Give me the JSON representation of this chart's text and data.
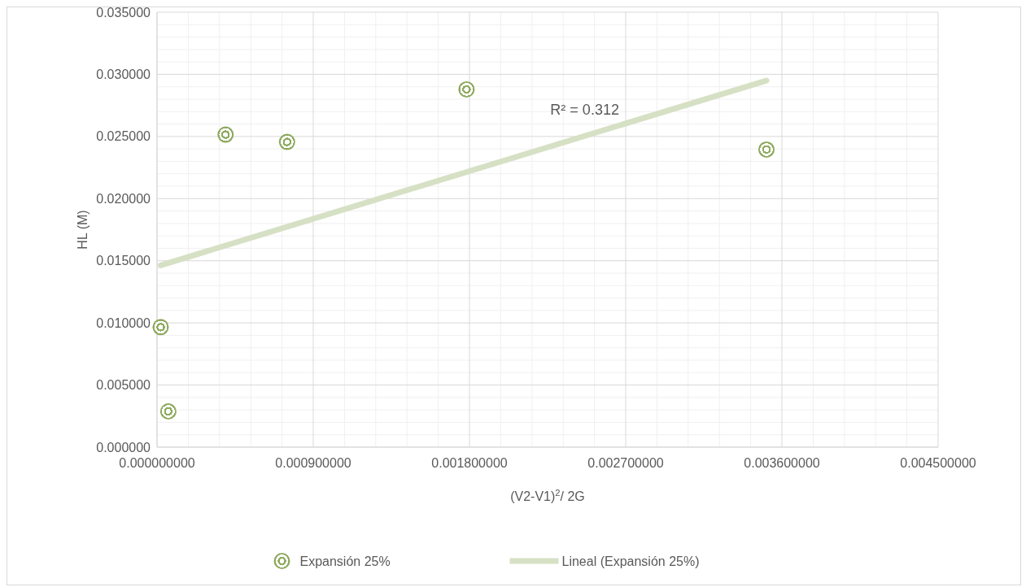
{
  "chart_data": {
    "type": "scatter",
    "xlabel": "(V2-V1)$^{2}$/ 2G",
    "ylabel": "HL (M)",
    "series": [
      {
        "name": "Expansión 25%",
        "color": "#8faa5e",
        "x": [
          2.1e-05,
          6.5e-05,
          0.000395,
          0.000749,
          0.001783,
          0.003511
        ],
        "values": [
          0.00966,
          0.00288,
          0.02515,
          0.02456,
          0.02879,
          0.02395
        ]
      },
      {
        "name": "Lineal (Expansión 25%)",
        "type": "line",
        "marker": "none",
        "color": "#d6e0c4",
        "x": [
          2.1e-05,
          0.003511
        ],
        "values": [
          0.01463,
          0.0295
        ]
      }
    ],
    "xlim": [
      0,
      0.0045
    ],
    "ylim": [
      0,
      0.035
    ],
    "xticks": [
      {
        "value": 0,
        "label": "0.000000000"
      },
      {
        "value": 0.0009,
        "label": "0.000900000"
      },
      {
        "value": 0.0018,
        "label": "0.001800000"
      },
      {
        "value": 0.0027,
        "label": "0.002700000"
      },
      {
        "value": 0.0036,
        "label": "0.003600000"
      },
      {
        "value": 0.0045,
        "label": "0.004500000"
      }
    ],
    "yticks": [
      {
        "value": 0,
        "label": "0.000000"
      },
      {
        "value": 0.005,
        "label": "0.005000"
      },
      {
        "value": 0.01,
        "label": "0.010000"
      },
      {
        "value": 0.015,
        "label": "0.015000"
      },
      {
        "value": 0.02,
        "label": "0.020000"
      },
      {
        "value": 0.025,
        "label": "0.025000"
      },
      {
        "value": 0.03,
        "label": "0.030000"
      },
      {
        "value": 0.035,
        "label": "0.035000"
      }
    ],
    "annotations": [
      "R² = 0.312"
    ],
    "grid": true,
    "legend": "bottom",
    "marker": "circle"
  }
}
